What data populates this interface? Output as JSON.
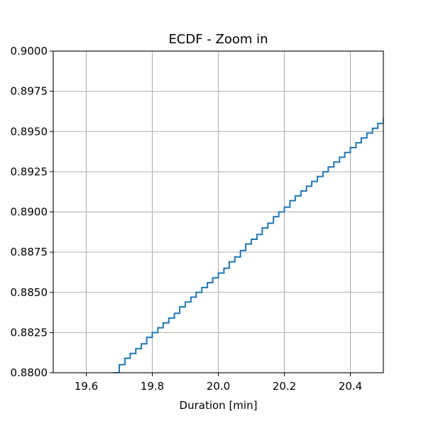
{
  "chart_data": {
    "type": "line",
    "drawstyle": "steps-post",
    "title": "ECDF - Zoom in",
    "xlabel": "Duration [min]",
    "ylabel": "",
    "xlim": [
      19.5,
      20.5
    ],
    "ylim": [
      0.88,
      0.9
    ],
    "x_ticks": [
      19.6,
      19.8,
      20.0,
      20.2,
      20.4
    ],
    "x_tick_labels": [
      "19.6",
      "19.8",
      "20.0",
      "20.2",
      "20.4"
    ],
    "y_ticks": [
      0.88,
      0.8825,
      0.885,
      0.8875,
      0.89,
      0.8925,
      0.895,
      0.8975,
      0.9
    ],
    "y_tick_labels": [
      "0.8800",
      "0.8825",
      "0.8850",
      "0.8875",
      "0.8900",
      "0.8925",
      "0.8950",
      "0.8975",
      "0.9000"
    ],
    "grid": true,
    "legend": "none",
    "line_color": "#1f77b4",
    "series": [
      {
        "x": [
          19.683,
          19.7,
          19.717,
          19.733,
          19.75,
          19.767,
          19.783,
          19.8,
          19.817,
          19.833,
          19.85,
          19.867,
          19.883,
          19.9,
          19.917,
          19.933,
          19.95,
          19.967,
          19.983,
          20.0,
          20.017,
          20.033,
          20.05,
          20.067,
          20.083,
          20.1,
          20.117,
          20.133,
          20.15,
          20.167,
          20.183,
          20.2,
          20.217,
          20.233,
          20.25,
          20.267,
          20.283,
          20.3,
          20.317,
          20.333,
          20.35,
          20.367,
          20.383,
          20.4,
          20.417,
          20.433,
          20.45,
          20.467,
          20.483,
          20.5
        ],
        "y": [
          0.88,
          0.8805,
          0.8809,
          0.8812,
          0.8815,
          0.8818,
          0.8822,
          0.8825,
          0.8828,
          0.8831,
          0.8834,
          0.8837,
          0.8841,
          0.8844,
          0.8847,
          0.885,
          0.8853,
          0.8856,
          0.8859,
          0.8862,
          0.8865,
          0.8869,
          0.8872,
          0.8876,
          0.888,
          0.8883,
          0.8886,
          0.889,
          0.8893,
          0.8897,
          0.89,
          0.8903,
          0.8907,
          0.891,
          0.8913,
          0.8916,
          0.8919,
          0.8922,
          0.8925,
          0.8928,
          0.8931,
          0.8934,
          0.8937,
          0.894,
          0.8943,
          0.8946,
          0.8949,
          0.8952,
          0.8955,
          0.8958
        ]
      }
    ]
  }
}
